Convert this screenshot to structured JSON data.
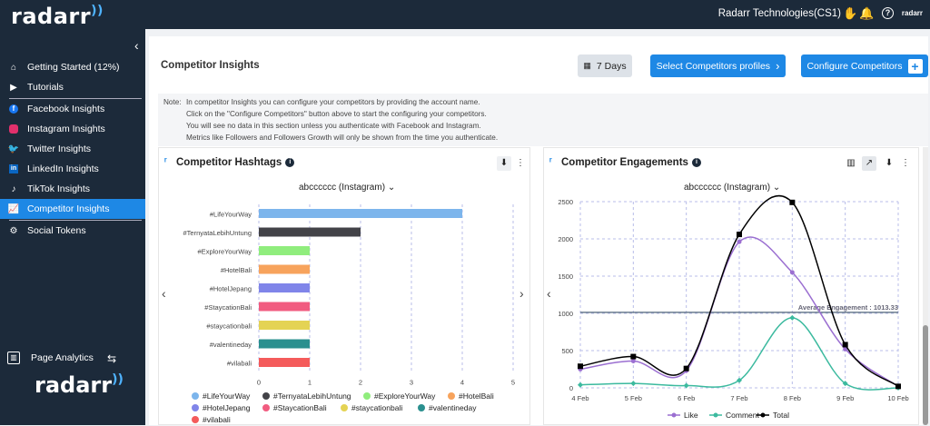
{
  "app": {
    "logo": "radarr",
    "org": "Radarr Technologies(CS1)",
    "brand_small": "radarr"
  },
  "sidebar": {
    "items": [
      {
        "label": "Getting Started (12%)",
        "icon": "home-icon"
      },
      {
        "label": "Tutorials",
        "icon": "video-icon"
      },
      {
        "label": "Facebook Insights",
        "icon": "facebook-icon"
      },
      {
        "label": "Instagram Insights",
        "icon": "instagram-icon"
      },
      {
        "label": "Twitter Insights",
        "icon": "twitter-icon"
      },
      {
        "label": "LinkedIn Insights",
        "icon": "linkedin-icon"
      },
      {
        "label": "TikTok Insights",
        "icon": "tiktok-icon"
      },
      {
        "label": "Competitor Insights",
        "icon": "chart-icon"
      },
      {
        "label": "Social Tokens",
        "icon": "token-icon"
      }
    ],
    "page_analytics": "Page Analytics",
    "logo": "radarr"
  },
  "main": {
    "title": "Competitor Insights",
    "days": "7 Days",
    "select_profiles": "Select Competitors profiles",
    "configure": "Configure Competitors",
    "note_label": "Note:",
    "note_lines": [
      "In competitor Insights you can configure your competitors by providing the account name.",
      "Click on the \"Configure Competitors\" button above to start the configuring your competitors.",
      "You will see no data in this section unless you authenticate with Facebook and Instagram.",
      "Metrics like Followers and Followers Growth will only be shown from the time you authenticate."
    ]
  },
  "hashtags_panel": {
    "title": "Competitor Hashtags",
    "selected": "abcccccc (Instagram)"
  },
  "engagements_panel": {
    "title": "Competitor Engagements",
    "selected": "abcccccc (Instagram)"
  },
  "chart_data": [
    {
      "type": "bar",
      "orientation": "horizontal",
      "categories": [
        "#LifeYourWay",
        "#TernyataLebihUntung",
        "#ExploreYourWay",
        "#HotelBali",
        "#HotelJepang",
        "#StaycationBali",
        "#staycationbali",
        "#valentineday",
        "#vilabali"
      ],
      "values": [
        4,
        2,
        1,
        1,
        1,
        1,
        1,
        1,
        1
      ],
      "colors": [
        "#7cb5ec",
        "#434348",
        "#90ed7d",
        "#f7a35c",
        "#8085e9",
        "#f15c80",
        "#e4d354",
        "#2b908f",
        "#f45b5b"
      ],
      "xticks": [
        "0",
        "1",
        "2",
        "3",
        "4",
        "5"
      ],
      "xlim": [
        0,
        5
      ],
      "legend": "bottom"
    },
    {
      "type": "line",
      "x": [
        "4 Feb",
        "5 Feb",
        "6 Feb",
        "7 Feb",
        "8 Feb",
        "9 Feb",
        "10 Feb"
      ],
      "yticks": [
        "0",
        "500",
        "1000",
        "1500",
        "2000",
        "2500"
      ],
      "ylim": [
        0,
        2500
      ],
      "series": [
        {
          "name": "Like",
          "color": "#9b6fd1",
          "values": [
            250,
            360,
            230,
            1960,
            1550,
            520,
            20
          ]
        },
        {
          "name": "Comment",
          "color": "#3cba9f",
          "values": [
            40,
            60,
            30,
            100,
            940,
            60,
            0
          ]
        },
        {
          "name": "Total",
          "color": "#000000",
          "values": [
            290,
            420,
            260,
            2060,
            2490,
            580,
            20
          ]
        }
      ],
      "annotation": {
        "label": "Average Engagement : 1013.33",
        "value": 1013.33
      },
      "legend": "bottom"
    }
  ]
}
